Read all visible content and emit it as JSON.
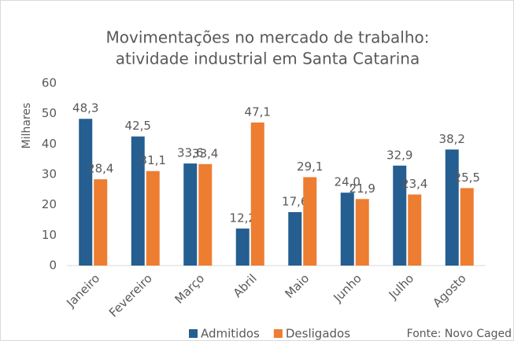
{
  "chart_data": {
    "type": "bar",
    "title": [
      "Movimentações no mercado de trabalho:",
      "atividade industrial em Santa Catarina"
    ],
    "y_label": "Milhares",
    "source": "Fonte: Novo Caged",
    "categories": [
      "Janeiro",
      "Fevereiro",
      "Março",
      "Abril",
      "Maio",
      "Junho",
      "Julho",
      "Agosto"
    ],
    "series": [
      {
        "name": "Admitidos",
        "color": "#255e91",
        "values": [
          48.3,
          42.5,
          33.6,
          12.2,
          17.6,
          24.0,
          32.9,
          38.2
        ],
        "value_labels": [
          "48,3",
          "42,5",
          "33,6",
          "12,2",
          "17,6",
          "24,0",
          "32,9",
          "38,2"
        ]
      },
      {
        "name": "Desligados",
        "color": "#ed7d31",
        "values": [
          28.4,
          31.1,
          33.4,
          47.1,
          29.1,
          21.9,
          23.4,
          25.5
        ],
        "value_labels": [
          "28,4",
          "31,1",
          "33,4",
          "47,1",
          "29,1",
          "21,9",
          "23,4",
          "25,5"
        ]
      }
    ],
    "ylim": [
      0,
      60
    ],
    "yticks": [
      0,
      10,
      20,
      30,
      40,
      50,
      60
    ],
    "grid": false,
    "legend": "bottom"
  }
}
